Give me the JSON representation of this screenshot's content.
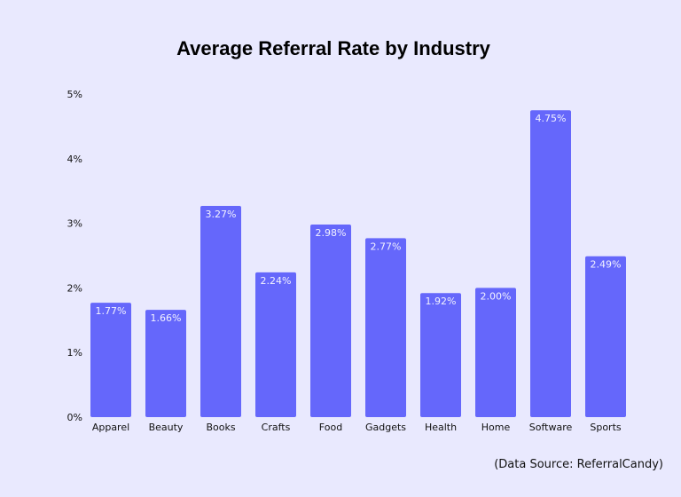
{
  "chart_data": {
    "type": "bar",
    "title": "Average Referral Rate by Industry",
    "xlabel": "",
    "ylabel": "",
    "categories": [
      "Apparel",
      "Beauty",
      "Books",
      "Crafts",
      "Food",
      "Gadgets",
      "Health",
      "Home",
      "Software",
      "Sports"
    ],
    "values": [
      1.77,
      1.66,
      3.27,
      2.24,
      2.98,
      2.77,
      1.92,
      2.0,
      4.75,
      2.49
    ],
    "data_labels": [
      "1.77%",
      "1.66%",
      "3.27%",
      "2.24%",
      "2.98%",
      "2.77%",
      "1.92%",
      "2.00%",
      "4.75%",
      "2.49%"
    ],
    "ylim": [
      0,
      5
    ],
    "yticks": [
      0,
      1,
      2,
      3,
      4,
      5
    ],
    "ytick_labels": [
      "0%",
      "1%",
      "2%",
      "3%",
      "4%",
      "5%"
    ],
    "grid": false,
    "legend": "none",
    "colors": {
      "bar": "#6567fb",
      "background": "#e9e9fe"
    },
    "source_note": "(Data Source: ReferralCandy)"
  }
}
